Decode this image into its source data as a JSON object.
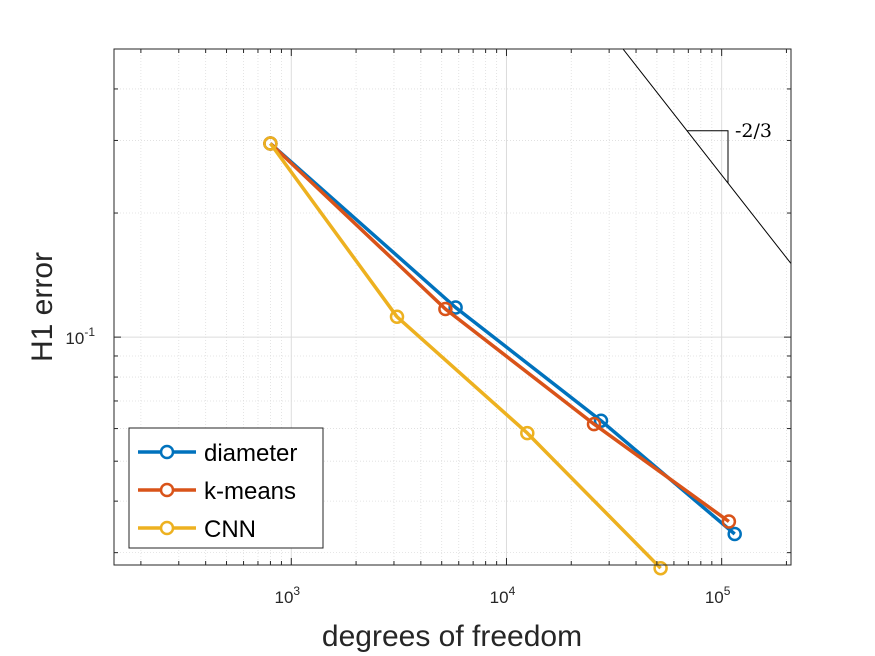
{
  "chart_data": {
    "type": "line",
    "title": "",
    "xlabel": "degrees of freedom",
    "ylabel": "H1 error",
    "xscale": "log",
    "yscale": "log",
    "xlim": [
      150,
      210000
    ],
    "ylim": [
      0.028,
      0.5
    ],
    "xticks": [
      {
        "value": 1000,
        "base": "10",
        "exp": "3"
      },
      {
        "value": 10000,
        "base": "10",
        "exp": "4"
      },
      {
        "value": 100000,
        "base": "10",
        "exp": "5"
      }
    ],
    "yticks": [
      {
        "value": 0.1,
        "base": "10",
        "exp": "-1"
      }
    ],
    "grid": true,
    "legend_position": "bottom-left",
    "series": [
      {
        "name": "diameter",
        "color": "#0072BD",
        "x": [
          800,
          5800,
          27500,
          115000
        ],
        "y": [
          0.295,
          0.118,
          0.0627,
          0.0333
        ]
      },
      {
        "name": "k-means",
        "color": "#D95319",
        "x": [
          800,
          5200,
          25500,
          108000
        ],
        "y": [
          0.295,
          0.117,
          0.0615,
          0.0357
        ]
      },
      {
        "name": "CNN",
        "color": "#EDB120",
        "x": [
          800,
          3100,
          12500,
          52000
        ],
        "y": [
          0.295,
          0.112,
          0.0585,
          0.0275
        ]
      }
    ],
    "annotations": [
      {
        "type": "slope-triangle",
        "label": "-2/3",
        "slope": -0.6667
      }
    ]
  }
}
